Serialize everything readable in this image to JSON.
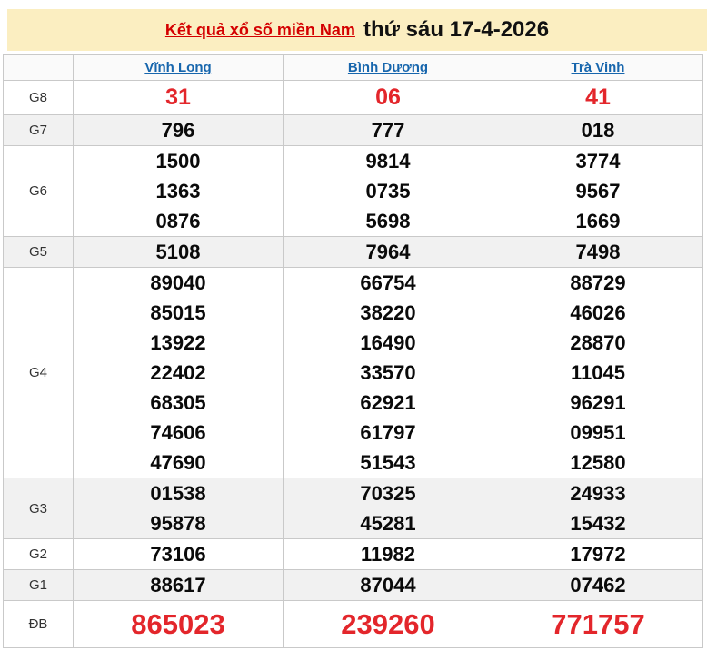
{
  "header": {
    "title_link": "Kết quả xổ số miền Nam",
    "title_date": "thứ sáu 17-4-2026"
  },
  "table": {
    "columns": [
      "Vĩnh Long",
      "Bình Dương",
      "Trà Vinh"
    ],
    "rows": [
      {
        "id": "g8",
        "label": "G8",
        "emphasis": "mid",
        "values": [
          [
            "31"
          ],
          [
            "06"
          ],
          [
            "41"
          ]
        ]
      },
      {
        "id": "g7",
        "label": "G7",
        "values": [
          [
            "796"
          ],
          [
            "777"
          ],
          [
            "018"
          ]
        ]
      },
      {
        "id": "g6",
        "label": "G6",
        "values": [
          [
            "1500",
            "1363",
            "0876"
          ],
          [
            "9814",
            "0735",
            "5698"
          ],
          [
            "3774",
            "9567",
            "1669"
          ]
        ]
      },
      {
        "id": "g5",
        "label": "G5",
        "values": [
          [
            "5108"
          ],
          [
            "7964"
          ],
          [
            "7498"
          ]
        ]
      },
      {
        "id": "g4",
        "label": "G4",
        "values": [
          [
            "89040",
            "85015",
            "13922",
            "22402",
            "68305",
            "74606",
            "47690"
          ],
          [
            "66754",
            "38220",
            "16490",
            "33570",
            "62921",
            "61797",
            "51543"
          ],
          [
            "88729",
            "46026",
            "28870",
            "11045",
            "96291",
            "09951",
            "12580"
          ]
        ]
      },
      {
        "id": "g3",
        "label": "G3",
        "values": [
          [
            "01538",
            "95878"
          ],
          [
            "70325",
            "45281"
          ],
          [
            "24933",
            "15432"
          ]
        ]
      },
      {
        "id": "g2",
        "label": "G2",
        "values": [
          [
            "73106"
          ],
          [
            "11982"
          ],
          [
            "17972"
          ]
        ]
      },
      {
        "id": "g1",
        "label": "G1",
        "values": [
          [
            "88617"
          ],
          [
            "87044"
          ],
          [
            "07462"
          ]
        ]
      },
      {
        "id": "db",
        "label": "ĐB",
        "emphasis": "big",
        "values": [
          [
            "865023"
          ],
          [
            "239260"
          ],
          [
            "771757"
          ]
        ]
      }
    ]
  },
  "colors": {
    "banner_background": "#fbeec1",
    "title_link_red": "#d40000",
    "column_link_blue": "#1766ad",
    "prize_highlight_red": "#e3262b",
    "row_stripe_gray": "#f1f1f1",
    "border_gray": "#c9c9c9"
  }
}
